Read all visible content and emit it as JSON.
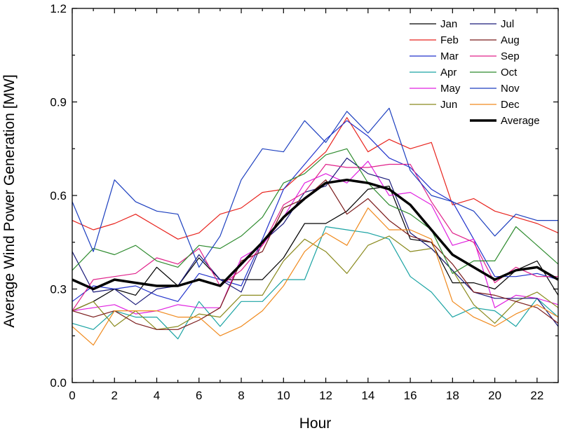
{
  "chart_data": {
    "type": "line",
    "title": "",
    "xlabel": "Hour",
    "ylabel": "Average Wind Power Generation [MW]",
    "xlim": [
      0,
      23
    ],
    "ylim": [
      0.0,
      1.2
    ],
    "xticks": [
      0,
      2,
      4,
      6,
      8,
      10,
      12,
      14,
      16,
      18,
      20,
      22
    ],
    "yticks": [
      0.0,
      0.3,
      0.6,
      0.9,
      1.2
    ],
    "ytick_labels": [
      "0.0",
      "0.3",
      "0.6",
      "0.9",
      "1.2"
    ],
    "grid": false,
    "legend_position": "top-right",
    "x": [
      0,
      1,
      2,
      3,
      4,
      5,
      6,
      7,
      8,
      9,
      10,
      11,
      12,
      13,
      14,
      15,
      16,
      17,
      18,
      19,
      20,
      21,
      22,
      23
    ],
    "series": [
      {
        "name": "Jan",
        "color": "#000000",
        "values": [
          0.23,
          0.26,
          0.3,
          0.28,
          0.37,
          0.31,
          0.4,
          0.33,
          0.33,
          0.33,
          0.4,
          0.51,
          0.51,
          0.55,
          0.62,
          0.63,
          0.46,
          0.45,
          0.32,
          0.32,
          0.3,
          0.36,
          0.39,
          0.28
        ]
      },
      {
        "name": "Feb",
        "color": "#e8231d",
        "values": [
          0.52,
          0.49,
          0.51,
          0.54,
          0.5,
          0.46,
          0.48,
          0.54,
          0.56,
          0.61,
          0.62,
          0.68,
          0.74,
          0.85,
          0.74,
          0.78,
          0.75,
          0.77,
          0.57,
          0.59,
          0.55,
          0.53,
          0.51,
          0.48
        ]
      },
      {
        "name": "Mar",
        "color": "#2233cc",
        "values": [
          0.26,
          0.31,
          0.3,
          0.31,
          0.28,
          0.26,
          0.35,
          0.33,
          0.31,
          0.46,
          0.62,
          0.7,
          0.78,
          0.84,
          0.79,
          0.72,
          0.69,
          0.62,
          0.58,
          0.46,
          0.34,
          0.34,
          0.35,
          0.33
        ]
      },
      {
        "name": "Apr",
        "color": "#1aa3a3",
        "values": [
          0.19,
          0.17,
          0.23,
          0.21,
          0.21,
          0.14,
          0.26,
          0.18,
          0.26,
          0.26,
          0.33,
          0.33,
          0.5,
          0.49,
          0.48,
          0.46,
          0.34,
          0.29,
          0.21,
          0.24,
          0.23,
          0.18,
          0.27,
          0.21
        ]
      },
      {
        "name": "May",
        "color": "#e020e0",
        "values": [
          0.23,
          0.24,
          0.25,
          0.22,
          0.23,
          0.25,
          0.24,
          0.24,
          0.4,
          0.44,
          0.53,
          0.64,
          0.67,
          0.64,
          0.71,
          0.6,
          0.61,
          0.57,
          0.44,
          0.46,
          0.24,
          0.28,
          0.27,
          0.25
        ]
      },
      {
        "name": "Jun",
        "color": "#8a8a1e",
        "values": [
          0.23,
          0.26,
          0.18,
          0.23,
          0.17,
          0.18,
          0.22,
          0.21,
          0.28,
          0.28,
          0.39,
          0.46,
          0.42,
          0.35,
          0.44,
          0.47,
          0.42,
          0.43,
          0.36,
          0.25,
          0.19,
          0.26,
          0.29,
          0.24
        ]
      },
      {
        "name": "Jul",
        "color": "#1a1a7a",
        "values": [
          0.42,
          0.29,
          0.3,
          0.25,
          0.3,
          0.31,
          0.41,
          0.33,
          0.29,
          0.45,
          0.51,
          0.61,
          0.63,
          0.72,
          0.67,
          0.65,
          0.48,
          0.43,
          0.36,
          0.29,
          0.27,
          0.27,
          0.27,
          0.18
        ]
      },
      {
        "name": "Aug",
        "color": "#7a1a1a",
        "values": [
          0.23,
          0.21,
          0.23,
          0.19,
          0.17,
          0.17,
          0.2,
          0.24,
          0.39,
          0.42,
          0.56,
          0.59,
          0.65,
          0.54,
          0.59,
          0.52,
          0.47,
          0.45,
          0.38,
          0.29,
          0.28,
          0.26,
          0.24,
          0.19
        ]
      },
      {
        "name": "Sep",
        "color": "#e0218a",
        "values": [
          0.23,
          0.33,
          0.34,
          0.35,
          0.4,
          0.38,
          0.43,
          0.31,
          0.36,
          0.44,
          0.57,
          0.61,
          0.7,
          0.69,
          0.69,
          0.7,
          0.7,
          0.58,
          0.48,
          0.45,
          0.32,
          0.37,
          0.34,
          0.34
        ]
      },
      {
        "name": "Oct",
        "color": "#2e8b2e",
        "values": [
          0.36,
          0.43,
          0.41,
          0.44,
          0.39,
          0.37,
          0.44,
          0.43,
          0.47,
          0.53,
          0.64,
          0.67,
          0.73,
          0.75,
          0.64,
          0.57,
          0.54,
          0.49,
          0.35,
          0.39,
          0.39,
          0.5,
          0.44,
          0.38
        ]
      },
      {
        "name": "Nov",
        "color": "#1c3fbf",
        "values": [
          0.58,
          0.42,
          0.65,
          0.58,
          0.55,
          0.54,
          0.37,
          0.47,
          0.65,
          0.75,
          0.74,
          0.84,
          0.77,
          0.87,
          0.8,
          0.88,
          0.68,
          0.6,
          0.58,
          0.55,
          0.47,
          0.54,
          0.52,
          0.52
        ]
      },
      {
        "name": "Dec",
        "color": "#f08a1e",
        "values": [
          0.18,
          0.12,
          0.23,
          0.23,
          0.23,
          0.21,
          0.21,
          0.15,
          0.18,
          0.23,
          0.31,
          0.42,
          0.48,
          0.44,
          0.56,
          0.49,
          0.49,
          0.46,
          0.26,
          0.21,
          0.18,
          0.22,
          0.25,
          0.21
        ]
      },
      {
        "name": "Average",
        "color": "#000000",
        "width": 3.5,
        "values": [
          0.33,
          0.3,
          0.33,
          0.32,
          0.31,
          0.31,
          0.33,
          0.31,
          0.38,
          0.45,
          0.53,
          0.59,
          0.64,
          0.65,
          0.64,
          0.62,
          0.57,
          0.49,
          0.41,
          0.37,
          0.33,
          0.36,
          0.37,
          0.33
        ]
      }
    ]
  }
}
